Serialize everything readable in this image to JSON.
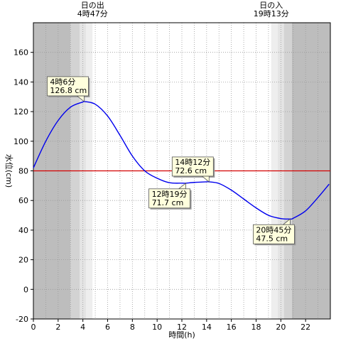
{
  "chart_data": {
    "type": "line",
    "title": "",
    "xlabel": "時間(h)",
    "ylabel": "水位(cm)",
    "xlim": [
      0,
      24
    ],
    "ylim": [
      -20,
      180
    ],
    "x_ticks": [
      0,
      2,
      4,
      6,
      8,
      10,
      12,
      14,
      16,
      18,
      20,
      22
    ],
    "y_ticks": [
      -20,
      0,
      20,
      40,
      60,
      80,
      100,
      120,
      140,
      160
    ],
    "grid": true,
    "reference_line": {
      "y": 80,
      "color": "#d40000"
    },
    "series": [
      {
        "color": "#0000ee",
        "x": [
          0,
          1,
          2,
          3,
          4,
          4.1,
          5,
          6,
          7,
          8,
          9,
          10,
          11,
          12,
          12.32,
          13,
          14,
          14.2,
          15,
          16,
          17,
          18,
          19,
          20,
          20.75,
          21,
          22,
          23,
          23.9
        ],
        "y": [
          82,
          100,
          114,
          123,
          126.5,
          126.8,
          125,
          117,
          104,
          90,
          80,
          75,
          72,
          71.7,
          71.7,
          72.2,
          72.6,
          72.6,
          71.5,
          67,
          61,
          55,
          50,
          47.8,
          47.5,
          48,
          53,
          62,
          71
        ]
      }
    ],
    "top_labels": [
      {
        "x": 4.78,
        "line1": "日の出",
        "line2": "4時47分"
      },
      {
        "x": 19.22,
        "line1": "日の入",
        "line2": "19時13分"
      }
    ],
    "annotations": [
      {
        "time": "4時6分",
        "value": "126.8 cm",
        "x": 4.1,
        "y": 126.8,
        "placement": "top-left"
      },
      {
        "time": "12時19分",
        "value": "71.7 cm",
        "x": 12.32,
        "y": 71.7,
        "placement": "bottom-left"
      },
      {
        "time": "14時12分",
        "value": "72.6 cm",
        "x": 14.2,
        "y": 72.6,
        "placement": "top-left"
      },
      {
        "time": "20時45分",
        "value": "47.5 cm",
        "x": 20.75,
        "y": 47.5,
        "placement": "bottom-left"
      }
    ],
    "background_bands": [
      {
        "from": 0,
        "to": 3.0,
        "color": "#bdbdbd"
      },
      {
        "from": 3.0,
        "to": 3.75,
        "color": "#d3d3d3"
      },
      {
        "from": 3.75,
        "to": 4.25,
        "color": "#e4e4e4"
      },
      {
        "from": 4.25,
        "to": 4.78,
        "color": "#eeeeee"
      },
      {
        "from": 4.78,
        "to": 19.22,
        "color": "#ffffff"
      },
      {
        "from": 19.22,
        "to": 19.75,
        "color": "#eeeeee"
      },
      {
        "from": 19.75,
        "to": 20.25,
        "color": "#e4e4e4"
      },
      {
        "from": 20.25,
        "to": 20.9,
        "color": "#d3d3d3"
      },
      {
        "from": 20.9,
        "to": 24,
        "color": "#bdbdbd"
      }
    ]
  }
}
